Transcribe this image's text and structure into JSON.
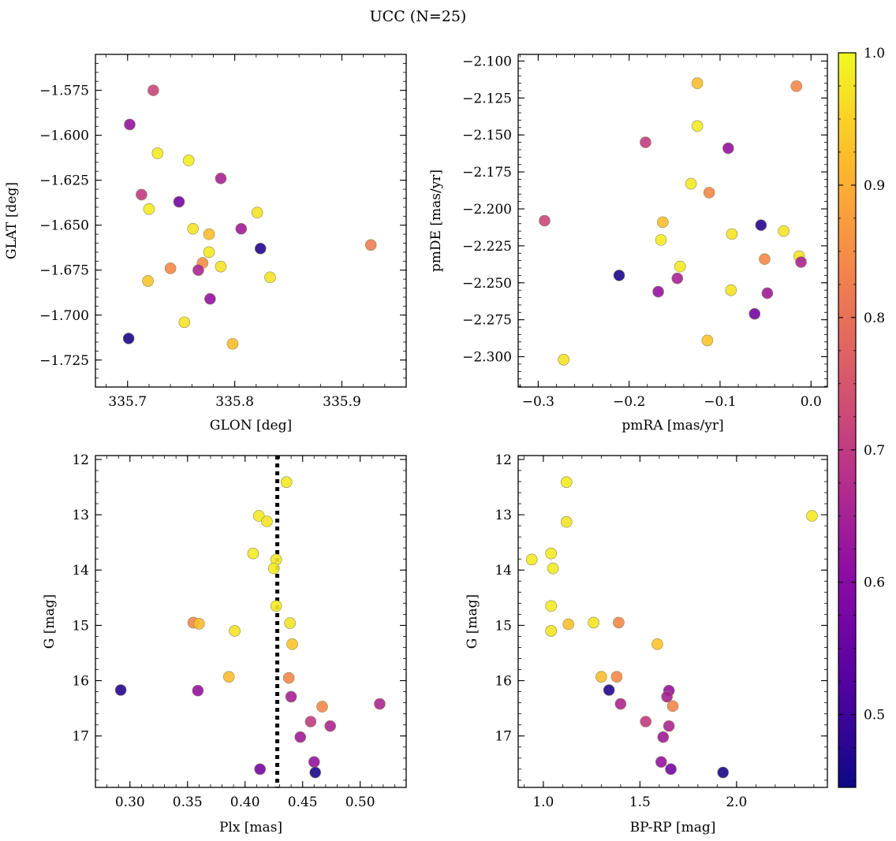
{
  "title": "UCC (N=25)",
  "chart_data": [
    {
      "type": "scatter",
      "id": "p1",
      "xlabel": "GLON [deg]",
      "ylabel": "GLAT [deg]",
      "xlim": [
        335.67,
        335.96
      ],
      "ylim": [
        -1.74,
        -1.555
      ],
      "xticks": [
        335.7,
        335.8,
        335.9
      ],
      "yticks": [
        -1.575,
        -1.6,
        -1.625,
        -1.65,
        -1.675,
        -1.7,
        -1.725
      ],
      "points": [
        {
          "x": 335.724,
          "y": -1.575,
          "c": 0.72
        },
        {
          "x": 335.702,
          "y": -1.594,
          "c": 0.62
        },
        {
          "x": 335.728,
          "y": -1.61,
          "c": 0.98
        },
        {
          "x": 335.757,
          "y": -1.614,
          "c": 0.98
        },
        {
          "x": 335.787,
          "y": -1.624,
          "c": 0.65
        },
        {
          "x": 335.713,
          "y": -1.633,
          "c": 0.7
        },
        {
          "x": 335.748,
          "y": -1.637,
          "c": 0.57
        },
        {
          "x": 335.72,
          "y": -1.641,
          "c": 0.98
        },
        {
          "x": 335.821,
          "y": -1.643,
          "c": 0.97
        },
        {
          "x": 335.761,
          "y": -1.652,
          "c": 0.97
        },
        {
          "x": 335.806,
          "y": -1.652,
          "c": 0.64
        },
        {
          "x": 335.776,
          "y": -1.655,
          "c": 0.92
        },
        {
          "x": 335.927,
          "y": -1.661,
          "c": 0.82
        },
        {
          "x": 335.824,
          "y": -1.663,
          "c": 0.47
        },
        {
          "x": 335.776,
          "y": -1.665,
          "c": 0.98
        },
        {
          "x": 335.77,
          "y": -1.671,
          "c": 0.85
        },
        {
          "x": 335.787,
          "y": -1.673,
          "c": 0.97
        },
        {
          "x": 335.74,
          "y": -1.674,
          "c": 0.84
        },
        {
          "x": 335.766,
          "y": -1.675,
          "c": 0.66
        },
        {
          "x": 335.833,
          "y": -1.679,
          "c": 0.97
        },
        {
          "x": 335.719,
          "y": -1.681,
          "c": 0.93
        },
        {
          "x": 335.777,
          "y": -1.691,
          "c": 0.62
        },
        {
          "x": 335.753,
          "y": -1.704,
          "c": 0.97
        },
        {
          "x": 335.701,
          "y": -1.713,
          "c": 0.46
        },
        {
          "x": 335.798,
          "y": -1.716,
          "c": 0.92
        }
      ]
    },
    {
      "type": "scatter",
      "id": "p2",
      "xlabel": "pmRA [mas/yr]",
      "ylabel": "pmDE [mas/yr]",
      "xlim": [
        -0.322,
        0.018
      ],
      "ylim": [
        -2.3205,
        -2.0955
      ],
      "xticks": [
        -0.3,
        -0.2,
        -0.1,
        0.0
      ],
      "yticks": [
        -2.1,
        -2.125,
        -2.15,
        -2.175,
        -2.2,
        -2.225,
        -2.25,
        -2.275,
        -2.3
      ],
      "points": [
        {
          "x": -0.125,
          "y": -2.115,
          "c": 0.92
        },
        {
          "x": -0.016,
          "y": -2.117,
          "c": 0.84
        },
        {
          "x": -0.125,
          "y": -2.144,
          "c": 0.98
        },
        {
          "x": -0.182,
          "y": -2.155,
          "c": 0.7
        },
        {
          "x": -0.091,
          "y": -2.159,
          "c": 0.62
        },
        {
          "x": -0.132,
          "y": -2.183,
          "c": 0.98
        },
        {
          "x": -0.112,
          "y": -2.189,
          "c": 0.84
        },
        {
          "x": -0.293,
          "y": -2.208,
          "c": 0.72
        },
        {
          "x": -0.163,
          "y": -2.209,
          "c": 0.92
        },
        {
          "x": -0.055,
          "y": -2.211,
          "c": 0.47
        },
        {
          "x": -0.03,
          "y": -2.215,
          "c": 0.97
        },
        {
          "x": -0.087,
          "y": -2.217,
          "c": 0.97
        },
        {
          "x": -0.165,
          "y": -2.221,
          "c": 0.98
        },
        {
          "x": -0.013,
          "y": -2.232,
          "c": 0.97
        },
        {
          "x": -0.051,
          "y": -2.234,
          "c": 0.84
        },
        {
          "x": -0.011,
          "y": -2.236,
          "c": 0.66
        },
        {
          "x": -0.144,
          "y": -2.239,
          "c": 0.98
        },
        {
          "x": -0.211,
          "y": -2.245,
          "c": 0.46
        },
        {
          "x": -0.147,
          "y": -2.247,
          "c": 0.65
        },
        {
          "x": -0.088,
          "y": -2.255,
          "c": 0.97
        },
        {
          "x": -0.168,
          "y": -2.256,
          "c": 0.62
        },
        {
          "x": -0.048,
          "y": -2.257,
          "c": 0.64
        },
        {
          "x": -0.062,
          "y": -2.271,
          "c": 0.57
        },
        {
          "x": -0.114,
          "y": -2.289,
          "c": 0.93
        },
        {
          "x": -0.272,
          "y": -2.302,
          "c": 0.97
        }
      ]
    },
    {
      "type": "scatter",
      "id": "p3",
      "xlabel": "Plx [mas]",
      "ylabel": "G [mag]",
      "xlim": [
        0.27,
        0.54
      ],
      "ylim": [
        17.93,
        11.93
      ],
      "xticks": [
        0.3,
        0.35,
        0.4,
        0.45,
        0.5
      ],
      "yticks": [
        12,
        13,
        14,
        15,
        16,
        17
      ],
      "vline": 0.428,
      "points": [
        {
          "x": 0.436,
          "y": 12.41,
          "c": 0.98
        },
        {
          "x": 0.412,
          "y": 13.02,
          "c": 0.98
        },
        {
          "x": 0.419,
          "y": 13.12,
          "c": 0.97
        },
        {
          "x": 0.407,
          "y": 13.7,
          "c": 0.98
        },
        {
          "x": 0.427,
          "y": 13.81,
          "c": 0.98
        },
        {
          "x": 0.425,
          "y": 13.97,
          "c": 0.98
        },
        {
          "x": 0.427,
          "y": 14.65,
          "c": 0.98
        },
        {
          "x": 0.355,
          "y": 14.95,
          "c": 0.84
        },
        {
          "x": 0.36,
          "y": 14.97,
          "c": 0.92
        },
        {
          "x": 0.439,
          "y": 14.96,
          "c": 0.97
        },
        {
          "x": 0.391,
          "y": 15.1,
          "c": 0.97
        },
        {
          "x": 0.441,
          "y": 15.34,
          "c": 0.93
        },
        {
          "x": 0.386,
          "y": 15.93,
          "c": 0.92
        },
        {
          "x": 0.438,
          "y": 15.95,
          "c": 0.84
        },
        {
          "x": 0.292,
          "y": 16.17,
          "c": 0.47
        },
        {
          "x": 0.359,
          "y": 16.18,
          "c": 0.62
        },
        {
          "x": 0.44,
          "y": 16.29,
          "c": 0.65
        },
        {
          "x": 0.517,
          "y": 16.42,
          "c": 0.66
        },
        {
          "x": 0.467,
          "y": 16.47,
          "c": 0.84
        },
        {
          "x": 0.457,
          "y": 16.74,
          "c": 0.7
        },
        {
          "x": 0.474,
          "y": 16.82,
          "c": 0.66
        },
        {
          "x": 0.448,
          "y": 17.02,
          "c": 0.64
        },
        {
          "x": 0.46,
          "y": 17.47,
          "c": 0.62
        },
        {
          "x": 0.413,
          "y": 17.6,
          "c": 0.57
        },
        {
          "x": 0.461,
          "y": 17.66,
          "c": 0.46
        }
      ]
    },
    {
      "type": "scatter",
      "id": "p4",
      "xlabel": "BP-RP [mag]",
      "ylabel": "G [mag]",
      "xlim": [
        0.87,
        2.47
      ],
      "ylim": [
        17.93,
        11.93
      ],
      "xticks": [
        1.0,
        1.5,
        2.0
      ],
      "yticks": [
        12,
        13,
        14,
        15,
        16,
        17
      ],
      "points": [
        {
          "x": 1.12,
          "y": 12.41,
          "c": 0.98
        },
        {
          "x": 2.39,
          "y": 13.02,
          "c": 0.98
        },
        {
          "x": 1.12,
          "y": 13.13,
          "c": 0.97
        },
        {
          "x": 1.04,
          "y": 13.7,
          "c": 0.98
        },
        {
          "x": 0.94,
          "y": 13.81,
          "c": 0.98
        },
        {
          "x": 1.05,
          "y": 13.97,
          "c": 0.98
        },
        {
          "x": 1.04,
          "y": 14.65,
          "c": 0.98
        },
        {
          "x": 1.26,
          "y": 14.95,
          "c": 0.97
        },
        {
          "x": 1.39,
          "y": 14.95,
          "c": 0.84
        },
        {
          "x": 1.13,
          "y": 14.98,
          "c": 0.92
        },
        {
          "x": 1.04,
          "y": 15.1,
          "c": 0.97
        },
        {
          "x": 1.59,
          "y": 15.34,
          "c": 0.93
        },
        {
          "x": 1.3,
          "y": 15.93,
          "c": 0.92
        },
        {
          "x": 1.38,
          "y": 15.93,
          "c": 0.84
        },
        {
          "x": 1.34,
          "y": 16.17,
          "c": 0.47
        },
        {
          "x": 1.65,
          "y": 16.18,
          "c": 0.62
        },
        {
          "x": 1.64,
          "y": 16.29,
          "c": 0.65
        },
        {
          "x": 1.4,
          "y": 16.42,
          "c": 0.66
        },
        {
          "x": 1.67,
          "y": 16.46,
          "c": 0.84
        },
        {
          "x": 1.53,
          "y": 16.74,
          "c": 0.7
        },
        {
          "x": 1.65,
          "y": 16.82,
          "c": 0.66
        },
        {
          "x": 1.62,
          "y": 17.02,
          "c": 0.64
        },
        {
          "x": 1.61,
          "y": 17.47,
          "c": 0.62
        },
        {
          "x": 1.66,
          "y": 17.6,
          "c": 0.57
        },
        {
          "x": 1.93,
          "y": 17.66,
          "c": 0.46
        }
      ]
    }
  ],
  "colorbar": {
    "colormap": "plasma",
    "range": [
      0.445,
      1.0
    ],
    "ticks": [
      0.5,
      0.6,
      0.7,
      0.8,
      0.9,
      1.0
    ],
    "tick_labels": [
      "0.5",
      "0.6",
      "0.7",
      "0.8",
      "0.9",
      "1.0"
    ]
  }
}
